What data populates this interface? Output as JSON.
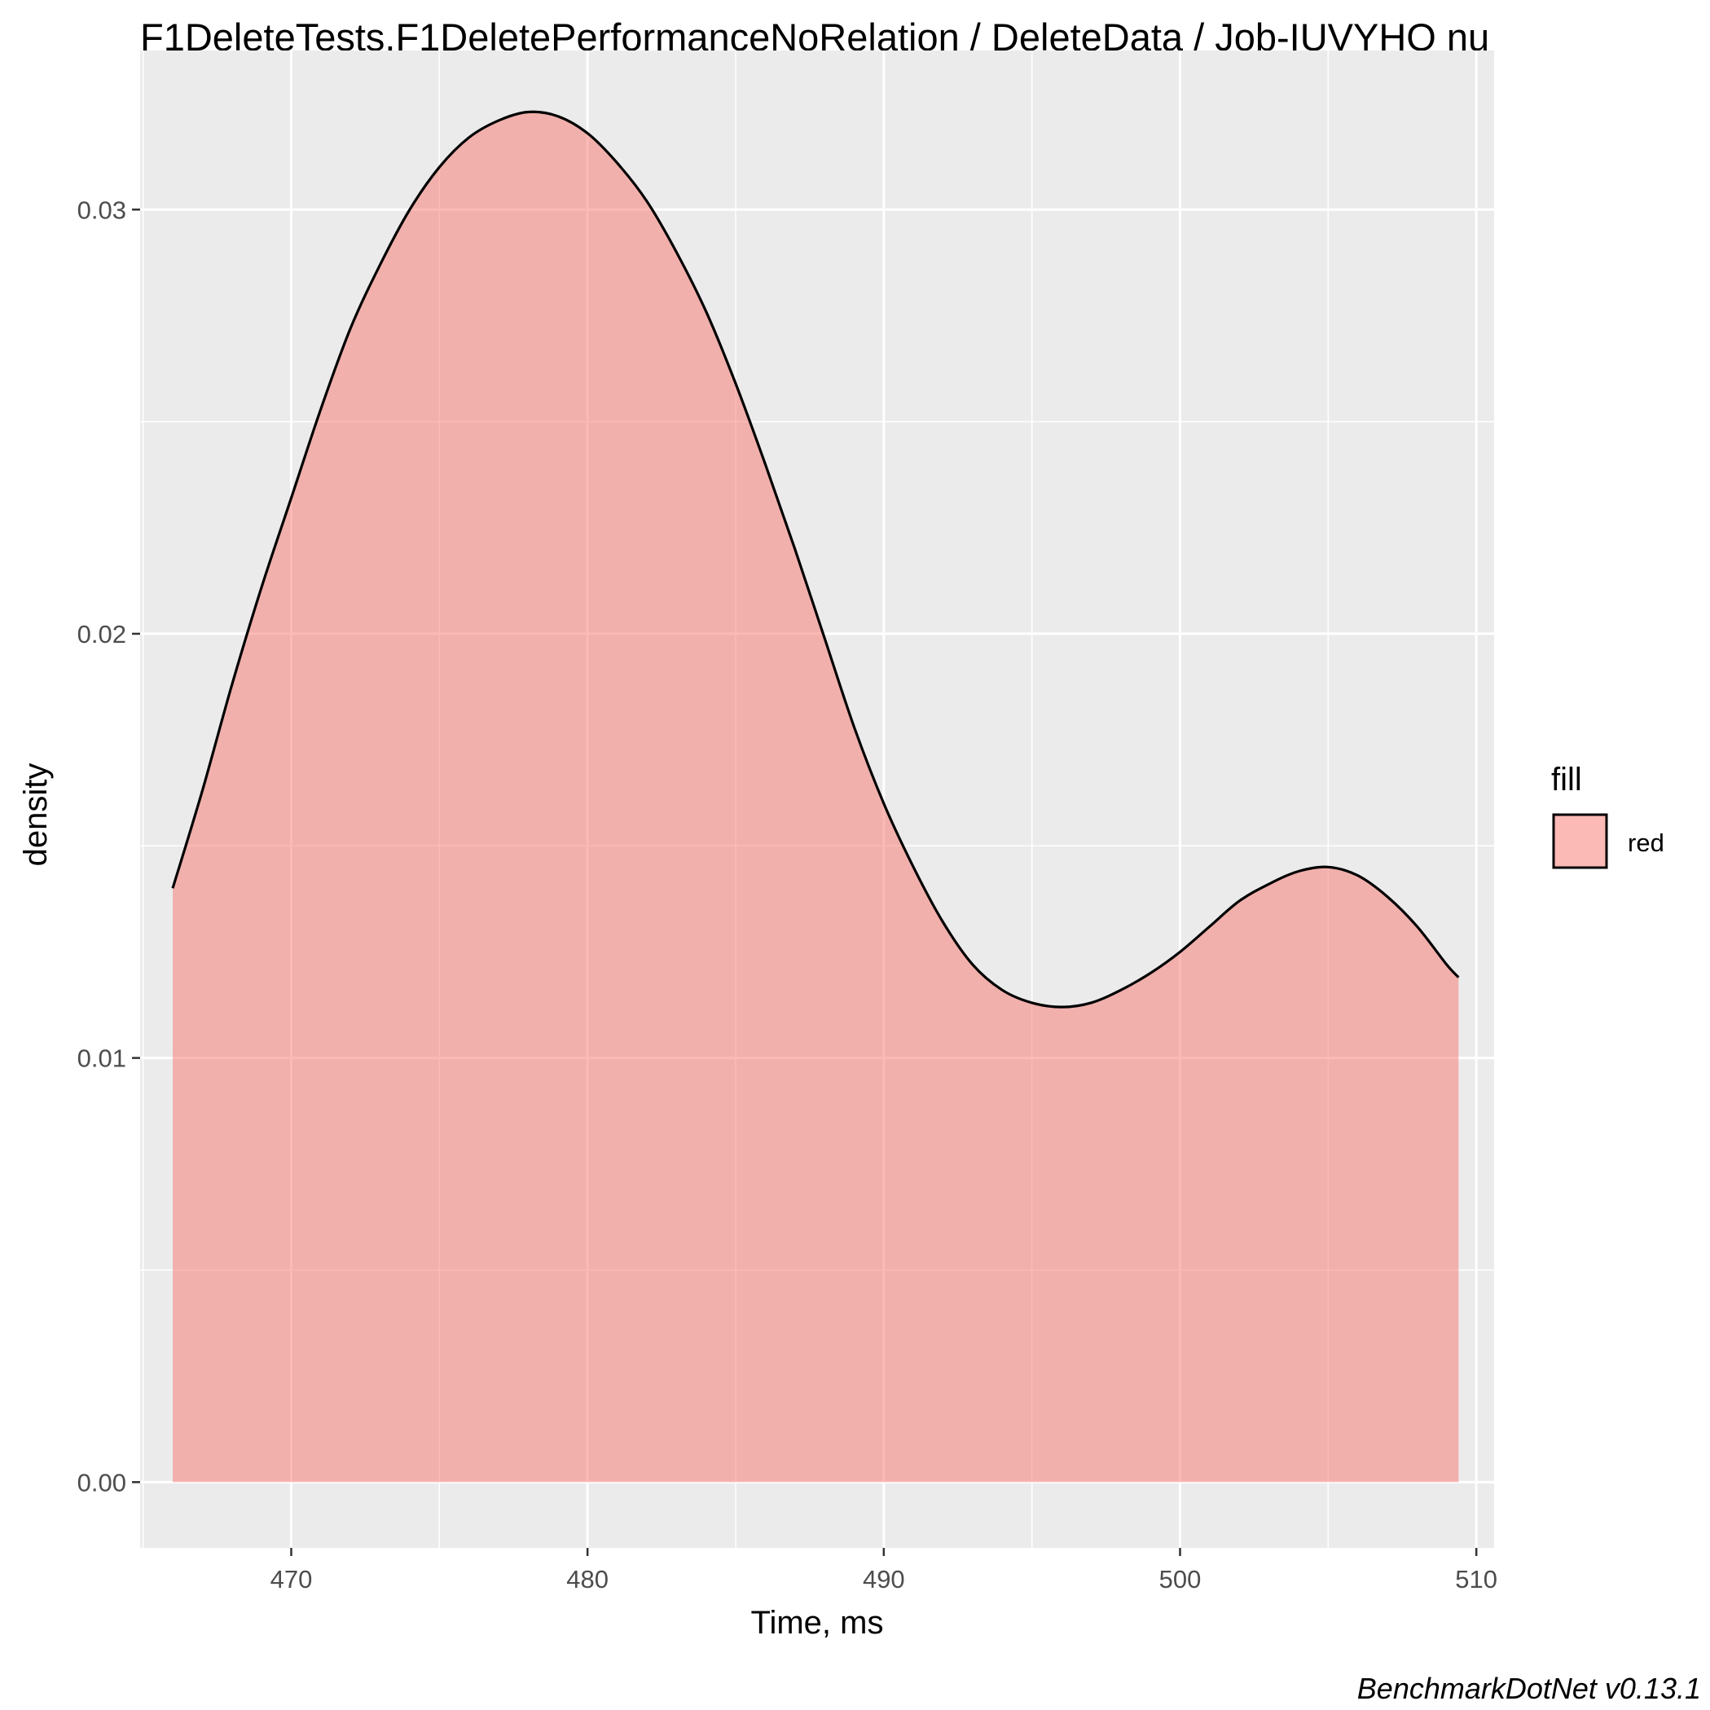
{
  "chart_data": {
    "type": "area",
    "title": "F1DeleteTests.F1DeletePerformanceNoRelation / DeleteData / Job-IUVYHO nu",
    "xlabel": "Time, ms",
    "ylabel": "density",
    "caption": "BenchmarkDotNet v0.13.1",
    "xlim": [
      464.9,
      510.6
    ],
    "ylim": [
      -0.00155,
      0.03375
    ],
    "x_ticks": [
      470,
      480,
      490,
      500,
      510
    ],
    "x_tick_labels": [
      "470",
      "480",
      "490",
      "500",
      "510"
    ],
    "y_ticks": [
      0.0,
      0.01,
      0.02,
      0.03
    ],
    "y_tick_labels": [
      "0.00",
      "0.01",
      "0.02",
      "0.03"
    ],
    "grid": true,
    "legend": {
      "position": "right",
      "title": "fill",
      "entries": [
        {
          "label": "red",
          "color": "#F8766D"
        }
      ]
    },
    "fill_color": "#F8766D",
    "fill_opacity": 0.5,
    "line_color": "#000000",
    "panel_background": "#EBEBEB",
    "grid_color": "#FFFFFF",
    "series": [
      {
        "x": [
          466.0,
          467.0,
          468.0,
          469.0,
          470.0,
          471.0,
          472.0,
          473.0,
          474.0,
          475.0,
          476.0,
          477.0,
          478.0,
          479.0,
          480.0,
          481.0,
          482.0,
          483.0,
          484.0,
          485.0,
          486.0,
          487.0,
          488.0,
          489.0,
          490.0,
          491.0,
          492.0,
          493.0,
          494.0,
          495.0,
          496.0,
          497.0,
          498.0,
          499.0,
          500.0,
          501.0,
          502.0,
          503.0,
          504.0,
          505.0,
          506.0,
          507.0,
          508.0,
          509.0,
          509.4
        ],
        "y": [
          0.014,
          0.0163,
          0.0188,
          0.0211,
          0.0232,
          0.0253,
          0.0272,
          0.0287,
          0.03,
          0.031,
          0.0317,
          0.0321,
          0.0323,
          0.0322,
          0.0318,
          0.0311,
          0.0302,
          0.029,
          0.0276,
          0.0259,
          0.024,
          0.022,
          0.0199,
          0.0178,
          0.016,
          0.0145,
          0.0132,
          0.0122,
          0.0116,
          0.0113,
          0.0112,
          0.0113,
          0.0116,
          0.012,
          0.0125,
          0.0131,
          0.0137,
          0.0141,
          0.0144,
          0.0145,
          0.0143,
          0.0138,
          0.0131,
          0.0122,
          0.0119
        ]
      }
    ]
  }
}
